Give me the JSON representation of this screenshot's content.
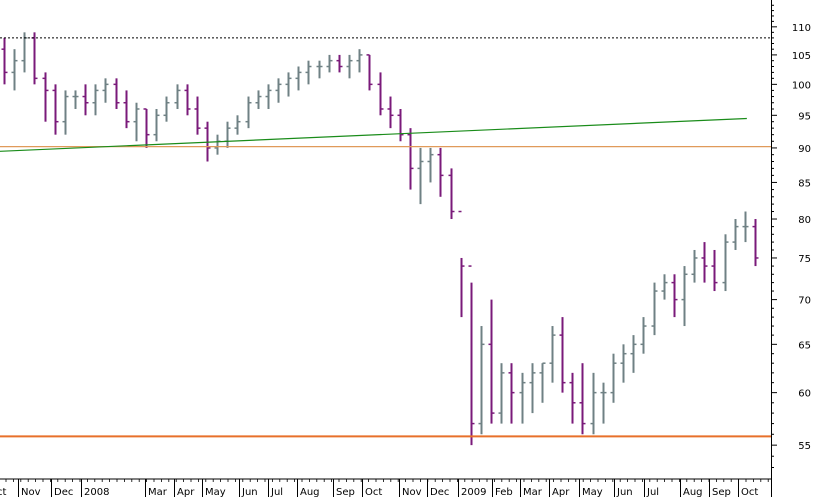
{
  "chart_data": {
    "type": "ohlc",
    "title": "",
    "xlabel": "",
    "ylabel": "",
    "y_scale": "log",
    "ylim": [
      52,
      115
    ],
    "y_ticks": [
      55,
      60,
      65,
      70,
      75,
      80,
      85,
      90,
      95,
      100,
      105,
      110
    ],
    "x_tick_labels": [
      "Oct",
      "Nov",
      "Dec",
      "2008",
      "Mar",
      "Apr",
      "May",
      "Jun",
      "Jul",
      "Aug",
      "Sep",
      "Oct",
      "Nov",
      "Dec",
      "2009",
      "Feb",
      "Mar",
      "Apr",
      "May",
      "Jun",
      "Jul",
      "Aug",
      "Sep",
      "Oct"
    ],
    "x_tick_labels_shown": [
      "ct",
      "Nov",
      "Dec",
      "2008",
      "Mar",
      "Apr",
      "May",
      "Jun",
      "Jul",
      "Aug",
      "Sep",
      "Oct",
      "Nov",
      "Dec",
      "2009",
      "Feb",
      "Mar",
      "Apr",
      "May",
      "Jun",
      "Jul",
      "Aug",
      "Sep",
      "Oct"
    ],
    "colors": {
      "up": "#6f8184",
      "down": "#7a1a7a",
      "trendline": "#1a8c1a",
      "resistance": "#e09a5a",
      "support": "#e8702a",
      "prior_high": "#000000"
    },
    "horizontal_lines": [
      {
        "value": 108,
        "style": "dotted",
        "color": "#000000"
      },
      {
        "value": 90.2,
        "style": "solid",
        "color": "#e09a5a"
      },
      {
        "value": 55.8,
        "style": "solid",
        "color": "#e8702a"
      }
    ],
    "trendline": {
      "from": {
        "bar": 0,
        "value": 89.5
      },
      "to": {
        "bar": 73,
        "value": 94.5
      }
    },
    "bars": [
      [
        106,
        108,
        100,
        102
      ],
      [
        102,
        106,
        99,
        104
      ],
      [
        104,
        109,
        102,
        108
      ],
      [
        108,
        109,
        100,
        101
      ],
      [
        101,
        102,
        94,
        99
      ],
      [
        99,
        100,
        92,
        94
      ],
      [
        94,
        99,
        92,
        98
      ],
      [
        98,
        99,
        96,
        98
      ],
      [
        98,
        100,
        95,
        97
      ],
      [
        97,
        100,
        95,
        99
      ],
      [
        99,
        101,
        97,
        100
      ],
      [
        100,
        101,
        96,
        97
      ],
      [
        97,
        99,
        93,
        94
      ],
      [
        94,
        97,
        91,
        96
      ],
      [
        96,
        96,
        90,
        92
      ],
      [
        92,
        96,
        91,
        95
      ],
      [
        95,
        98,
        94,
        97
      ],
      [
        97,
        100,
        96,
        99
      ],
      [
        99,
        100,
        95,
        96
      ],
      [
        96,
        98,
        92,
        93
      ],
      [
        93,
        94,
        88,
        90
      ],
      [
        90,
        92,
        89,
        91
      ],
      [
        91,
        94,
        90,
        93
      ],
      [
        93,
        95,
        92,
        94
      ],
      [
        94,
        98,
        93,
        97
      ],
      [
        97,
        99,
        96,
        98
      ],
      [
        98,
        100,
        96,
        99
      ],
      [
        99,
        101,
        97,
        100
      ],
      [
        100,
        102,
        98,
        101
      ],
      [
        101,
        103,
        99,
        102
      ],
      [
        102,
        104,
        100,
        103
      ],
      [
        103,
        104,
        101,
        103
      ],
      [
        103,
        105,
        102,
        104
      ],
      [
        104,
        105,
        102,
        103
      ],
      [
        103,
        105,
        101,
        104
      ],
      [
        104,
        106,
        102,
        105
      ],
      [
        105,
        105,
        99,
        100
      ],
      [
        100,
        102,
        95,
        96
      ],
      [
        96,
        98,
        93,
        95
      ],
      [
        95,
        96,
        91,
        92
      ],
      [
        92,
        93,
        84,
        87
      ],
      [
        87,
        90,
        82,
        88
      ],
      [
        88,
        90,
        85,
        89
      ],
      [
        89,
        90,
        83,
        86
      ],
      [
        86,
        87,
        80,
        81
      ],
      [
        81,
        75,
        68,
        74
      ],
      [
        74,
        72,
        55,
        57
      ],
      [
        57,
        67,
        56,
        65
      ],
      [
        65,
        70,
        57,
        58
      ],
      [
        58,
        63,
        57,
        62
      ],
      [
        62,
        63,
        57,
        60
      ],
      [
        60,
        62,
        57,
        61
      ],
      [
        61,
        63,
        58,
        62
      ],
      [
        62,
        63,
        59,
        63
      ],
      [
        63,
        67,
        61,
        66
      ],
      [
        66,
        68,
        60,
        61
      ],
      [
        61,
        62,
        57,
        59
      ],
      [
        59,
        63,
        56,
        57
      ],
      [
        57,
        62,
        56,
        60
      ],
      [
        60,
        61,
        57,
        60
      ],
      [
        60,
        64,
        59,
        63
      ],
      [
        63,
        65,
        61,
        64
      ],
      [
        64,
        66,
        62,
        65
      ],
      [
        65,
        68,
        64,
        67
      ],
      [
        67,
        72,
        66,
        71
      ],
      [
        71,
        73,
        70,
        72
      ],
      [
        72,
        73,
        68,
        70
      ],
      [
        70,
        74,
        67,
        73
      ],
      [
        73,
        76,
        72,
        75
      ],
      [
        75,
        77,
        72,
        74
      ],
      [
        74,
        76,
        71,
        72
      ],
      [
        72,
        78,
        71,
        77
      ],
      [
        77,
        80,
        76,
        79
      ],
      [
        79,
        81,
        77,
        79
      ],
      [
        79,
        80,
        74,
        75
      ]
    ]
  }
}
